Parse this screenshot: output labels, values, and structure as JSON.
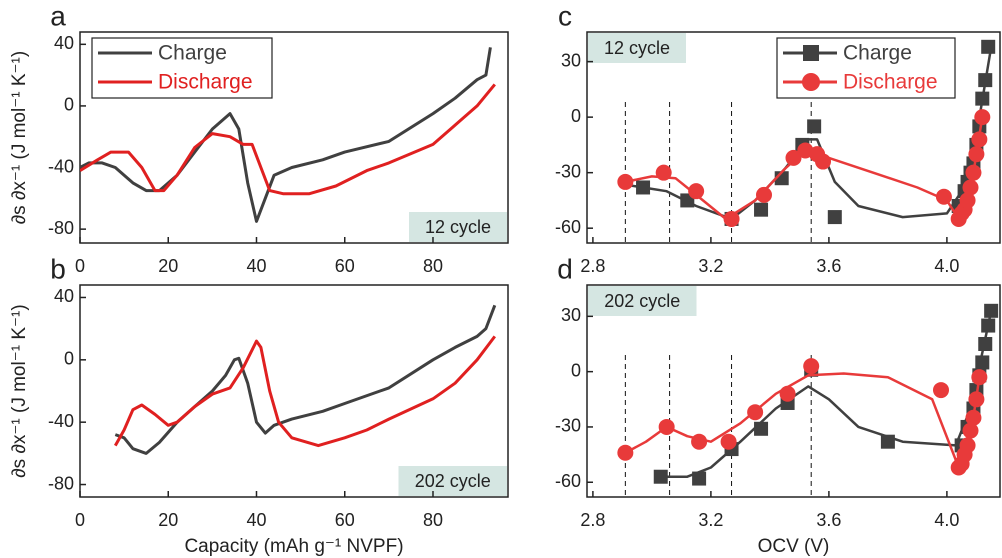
{
  "chart_data": [
    {
      "panel_label": "a",
      "type": "line",
      "ylabel": "∂s ∂x⁻¹ (J mol⁻¹ K⁻¹)",
      "xlim": [
        0,
        97
      ],
      "xticks": [
        0,
        20,
        40,
        60,
        80
      ],
      "ylim": [
        -89,
        48
      ],
      "yticks": [
        40,
        0,
        -40,
        -80
      ],
      "annotation": "12 cycle",
      "annotation_corner": "lower right",
      "legend": "upper left",
      "series": [
        {
          "name": "Charge",
          "color": "#404040",
          "x": [
            0,
            2,
            5,
            8,
            12,
            15,
            18,
            22,
            26,
            30,
            34,
            36,
            38,
            40,
            42,
            44,
            48,
            55,
            60,
            70,
            80,
            85,
            90,
            92,
            93
          ],
          "values": [
            -40,
            -37,
            -37,
            -40,
            -50,
            -55,
            -55,
            -45,
            -30,
            -15,
            -5,
            -15,
            -50,
            -75,
            -60,
            -45,
            -40,
            -35,
            -30,
            -23,
            -5,
            5,
            17,
            20,
            38
          ]
        },
        {
          "name": "Discharge",
          "color": "#e02020",
          "x": [
            0,
            4,
            7,
            11,
            14,
            17,
            19,
            22,
            26,
            30,
            34,
            37,
            39,
            41,
            43,
            46,
            52,
            58,
            65,
            70,
            80,
            86,
            90,
            94
          ],
          "values": [
            -42,
            -35,
            -30,
            -30,
            -40,
            -55,
            -55,
            -45,
            -27,
            -18,
            -20,
            -25,
            -25,
            -40,
            -55,
            -57,
            -57,
            -52,
            -42,
            -37,
            -25,
            -10,
            0,
            14
          ]
        }
      ]
    },
    {
      "panel_label": "b",
      "type": "line",
      "ylabel": "∂s ∂x⁻¹ (J mol⁻¹ K⁻¹)",
      "xlabel": "Capacity (mAh g⁻¹ NVPF)",
      "xlim": [
        0,
        97
      ],
      "xticks": [
        0,
        20,
        40,
        60,
        80
      ],
      "ylim": [
        -88,
        48
      ],
      "yticks": [
        40,
        0,
        -40,
        -80
      ],
      "annotation": "202 cycle",
      "annotation_corner": "lower right",
      "series": [
        {
          "name": "Charge",
          "color": "#404040",
          "x": [
            8,
            10,
            12,
            15,
            18,
            22,
            26,
            30,
            33,
            35,
            36,
            38,
            40,
            42,
            44,
            48,
            55,
            60,
            70,
            80,
            85,
            90,
            92,
            94
          ],
          "values": [
            -48,
            -50,
            -57,
            -60,
            -53,
            -40,
            -30,
            -20,
            -10,
            0,
            1,
            -15,
            -40,
            -47,
            -42,
            -38,
            -33,
            -28,
            -18,
            0,
            8,
            15,
            20,
            35
          ]
        },
        {
          "name": "Discharge",
          "color": "#e02020",
          "x": [
            8,
            10,
            12,
            14,
            17,
            20,
            22,
            26,
            30,
            34,
            37,
            40,
            41,
            43,
            45,
            48,
            54,
            60,
            65,
            70,
            80,
            85,
            90,
            94
          ],
          "values": [
            -55,
            -45,
            -32,
            -29,
            -35,
            -42,
            -40,
            -30,
            -22,
            -18,
            -5,
            12,
            8,
            -20,
            -40,
            -50,
            -55,
            -50,
            -45,
            -38,
            -25,
            -15,
            0,
            15
          ]
        }
      ]
    },
    {
      "panel_label": "c",
      "type": "scatter",
      "xlim": [
        2.78,
        4.18
      ],
      "xticks": [
        2.8,
        3.2,
        3.6,
        {
          "value": 4,
          "label": "4.0"
        }
      ],
      "ylim": [
        -68,
        46
      ],
      "yticks": [
        30,
        0,
        -30,
        -60
      ],
      "vlines": [
        2.91,
        3.06,
        3.27,
        3.54
      ],
      "annotation": "12 cycle",
      "annotation_corner": "upper left",
      "legend": "upper right",
      "series": [
        {
          "name": "Charge",
          "color": "#404040",
          "marker": "square",
          "x": [
            2.97,
            3.12,
            3.27,
            3.37,
            3.44,
            3.51,
            3.55,
            3.62,
            4.04,
            4.06,
            4.07,
            4.08,
            4.09,
            4.1,
            4.11,
            4.12,
            4.13,
            4.14
          ],
          "values": [
            -38,
            -45,
            -55,
            -50,
            -33,
            -15,
            -5,
            -54,
            -48,
            -40,
            -35,
            -30,
            -25,
            -15,
            -5,
            10,
            20,
            38
          ],
          "fit_x": [
            2.93,
            3.05,
            3.15,
            3.27,
            3.35,
            3.45,
            3.53,
            3.56,
            3.62,
            3.7,
            3.85,
            4.0,
            4.05,
            4.1,
            4.15
          ],
          "fit_values": [
            -37,
            -40,
            -48,
            -55,
            -45,
            -28,
            -12,
            -12,
            -35,
            -48,
            -54,
            -52,
            -40,
            -10,
            38
          ]
        },
        {
          "name": "Discharge",
          "color": "#e83a3a",
          "marker": "circle",
          "x": [
            2.91,
            3.04,
            3.15,
            3.27,
            3.38,
            3.48,
            3.52,
            3.56,
            3.58,
            3.99,
            4.04,
            4.05,
            4.06,
            4.07,
            4.08,
            4.09,
            4.1,
            4.11,
            4.12
          ],
          "values": [
            -35,
            -30,
            -40,
            -55,
            -42,
            -22,
            -18,
            -20,
            -24,
            -43,
            -55,
            -52,
            -50,
            -45,
            -38,
            -30,
            -20,
            -12,
            0
          ],
          "fit_x": [
            2.91,
            3.0,
            3.08,
            3.15,
            3.25,
            3.35,
            3.45,
            3.52,
            3.6,
            3.75,
            3.9,
            4.0,
            4.04,
            4.08,
            4.12
          ],
          "fit_values": [
            -35,
            -32,
            -33,
            -42,
            -55,
            -45,
            -28,
            -18,
            -22,
            -30,
            -38,
            -45,
            -55,
            -40,
            0
          ]
        }
      ]
    },
    {
      "panel_label": "d",
      "type": "scatter",
      "xlabel": "OCV (V)",
      "xlim": [
        2.78,
        4.18
      ],
      "xticks": [
        2.8,
        3.2,
        3.6,
        {
          "value": 4,
          "label": "4.0"
        }
      ],
      "ylim": [
        -68,
        47
      ],
      "yticks": [
        30,
        0,
        -30,
        -60
      ],
      "vlines": [
        2.91,
        3.06,
        3.27,
        3.54
      ],
      "annotation": "202 cycle",
      "annotation_corner": "upper left",
      "series": [
        {
          "name": "Charge",
          "color": "#404040",
          "marker": "square",
          "x": [
            3.03,
            3.16,
            3.27,
            3.37,
            3.46,
            3.54,
            3.8,
            4.05,
            4.07,
            4.09,
            4.1,
            4.11,
            4.12,
            4.13,
            4.14,
            4.15
          ],
          "values": [
            -57,
            -58,
            -42,
            -31,
            -17,
            1,
            -38,
            -40,
            -30,
            -20,
            -10,
            -2,
            5,
            15,
            25,
            33
          ],
          "fit_x": [
            3.03,
            3.12,
            3.2,
            3.3,
            3.42,
            3.53,
            3.6,
            3.7,
            3.85,
            4.03,
            4.08,
            4.15
          ],
          "fit_values": [
            -57,
            -57,
            -52,
            -38,
            -20,
            -8,
            -15,
            -30,
            -38,
            -40,
            -20,
            33
          ]
        },
        {
          "name": "Discharge",
          "color": "#e83a3a",
          "marker": "circle",
          "x": [
            2.91,
            3.05,
            3.16,
            3.26,
            3.35,
            3.46,
            3.54,
            3.98,
            4.04,
            4.05,
            4.06,
            4.07,
            4.08,
            4.09,
            4.1,
            4.11
          ],
          "values": [
            -44,
            -30,
            -38,
            -38,
            -22,
            -12,
            3,
            -10,
            -52,
            -50,
            -45,
            -40,
            -32,
            -25,
            -15,
            -3
          ],
          "fit_x": [
            2.91,
            2.98,
            3.05,
            3.12,
            3.2,
            3.3,
            3.42,
            3.53,
            3.65,
            3.8,
            3.95,
            4.04,
            4.08,
            4.11
          ],
          "fit_values": [
            -44,
            -38,
            -30,
            -35,
            -38,
            -28,
            -12,
            -2,
            -1,
            -3,
            -15,
            -52,
            -35,
            -3
          ]
        }
      ]
    }
  ]
}
